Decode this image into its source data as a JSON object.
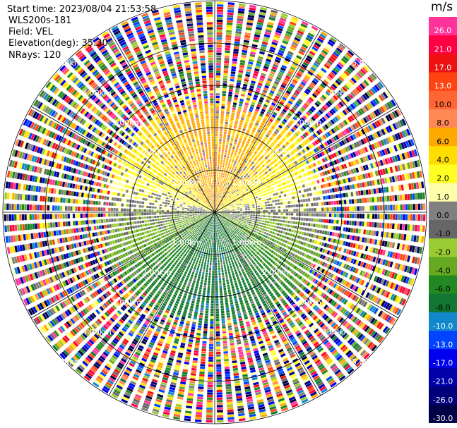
{
  "header": {
    "start_time": "Start time: 2023/08/04 21:53:58",
    "instrument": "WLS200s-181",
    "field": "Field: VEL",
    "elevation": "Elevation(deg): 35.30",
    "nrays": "NRays: 120"
  },
  "colorbar": {
    "unit": "m/s",
    "entries": [
      {
        "value": "26.0",
        "color": "#ff3399"
      },
      {
        "value": "21.0",
        "color": "#ff0044"
      },
      {
        "value": "17.0",
        "color": "#ee1111"
      },
      {
        "value": "13.0",
        "color": "#ff4411"
      },
      {
        "value": "10.0",
        "color": "#ff6633"
      },
      {
        "value": "8.0",
        "color": "#ff8855"
      },
      {
        "value": "6.0",
        "color": "#ffaa00"
      },
      {
        "value": "4.0",
        "color": "#ffdd00"
      },
      {
        "value": "2.0",
        "color": "#ffff22"
      },
      {
        "value": "1.0",
        "color": "#ffffaa"
      },
      {
        "value": "0.0",
        "color": "#808080"
      },
      {
        "value": "-1.0",
        "color": "#666666"
      },
      {
        "value": "-2.0",
        "color": "#99cc33"
      },
      {
        "value": "-4.0",
        "color": "#66aa22"
      },
      {
        "value": "-6.0",
        "color": "#228822"
      },
      {
        "value": "-8.0",
        "color": "#117733"
      },
      {
        "value": "-10.0",
        "color": "#1188cc"
      },
      {
        "value": "-13.0",
        "color": "#0044ff"
      },
      {
        "value": "-17.0",
        "color": "#0000ee"
      },
      {
        "value": "-21.0",
        "color": "#0000aa"
      },
      {
        "value": "-26.0",
        "color": "#00007a"
      },
      {
        "value": "-30.0",
        "color": "#000044"
      }
    ]
  },
  "chart_data": {
    "type": "heatmap",
    "subtype": "polar PPI (plan position indicator)",
    "field": "VEL",
    "unit": "m/s",
    "elevation_deg": 35.3,
    "n_rays": 120,
    "range_ring_labels": [
      "1.00km",
      "2.00km",
      "3.00km",
      "4.00km",
      "5.00km"
    ],
    "range_rings_km": [
      1,
      2,
      3,
      4,
      5
    ],
    "near_field_pattern": "positive velocities (yellow/orange, 2-10 m/s) in the northern half; negative velocities (green, -2 to -8 m/s) in the southern half; grey near-zero values in the northwest and northeast",
    "far_field_pattern": "noisy multi-colour values over the full colour range beyond about 2.5 km",
    "colorbar_ticks": [
      26.0,
      21.0,
      17.0,
      13.0,
      10.0,
      8.0,
      6.0,
      4.0,
      2.0,
      1.0,
      0.0,
      -1.0,
      -2.0,
      -4.0,
      -6.0,
      -8.0,
      -10.0,
      -13.0,
      -17.0,
      -21.0,
      -26.0,
      -30.0
    ]
  }
}
